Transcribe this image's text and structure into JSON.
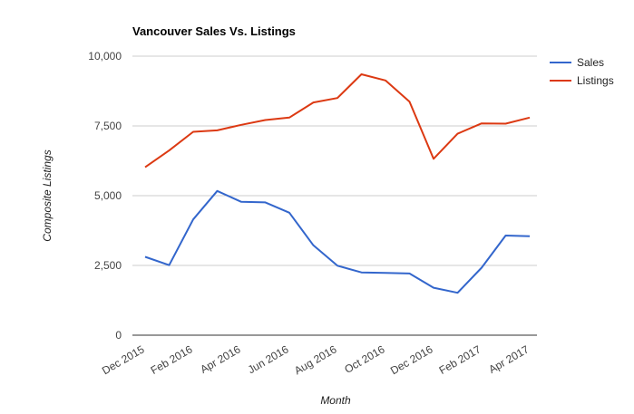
{
  "chart_data": {
    "type": "line",
    "title": "Vancouver Sales Vs. Listings",
    "xlabel": "Month",
    "ylabel": "Composite Listings",
    "categories": [
      "Dec 2015",
      "Jan 2016",
      "Feb 2016",
      "Mar 2016",
      "Apr 2016",
      "May 2016",
      "Jun 2016",
      "Jul 2016",
      "Aug 2016",
      "Sep 2016",
      "Oct 2016",
      "Nov 2016",
      "Dec 2016",
      "Jan 2017",
      "Feb 2017",
      "Mar 2017",
      "Apr 2017"
    ],
    "x_tick_labels": [
      "Dec 2015",
      "Feb 2016",
      "Apr 2016",
      "Jun 2016",
      "Aug 2016",
      "Oct 2016",
      "Dec 2016",
      "Feb 2017",
      "Apr 2017"
    ],
    "ylim": [
      0,
      10000
    ],
    "y_ticks": [
      0,
      2500,
      5000,
      7500,
      10000
    ],
    "y_tick_labels": [
      "0",
      "2,500",
      "5,000",
      "7,500",
      "10,000"
    ],
    "grid": true,
    "legend_position": "right",
    "series": [
      {
        "name": "Sales",
        "color": "#3366cc",
        "values": [
          2810,
          2510,
          4150,
          5170,
          4780,
          4760,
          4390,
          3220,
          2490,
          2250,
          2230,
          2210,
          1700,
          1520,
          2420,
          3570,
          3550
        ]
      },
      {
        "name": "Listings",
        "color": "#dc3912",
        "values": [
          6020,
          6620,
          7290,
          7340,
          7540,
          7710,
          7800,
          8340,
          8500,
          9350,
          9130,
          8370,
          6320,
          7220,
          7590,
          7580,
          7800
        ]
      }
    ]
  }
}
